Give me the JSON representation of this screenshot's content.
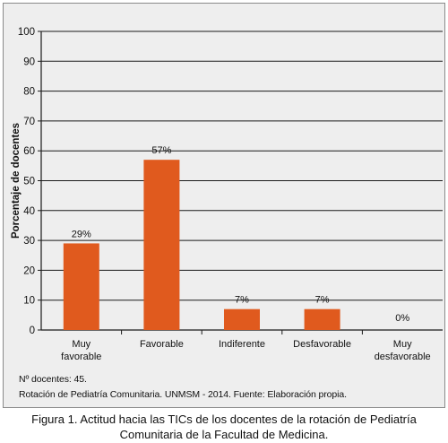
{
  "chart_data": {
    "type": "bar",
    "categories": [
      "Muy\nfavorable",
      "Favorable",
      "Indiferente",
      "Desfavorable",
      "Muy\ndesfavorable"
    ],
    "values": [
      29,
      57,
      7,
      7,
      0
    ],
    "data_labels": [
      "29%",
      "57%",
      "7%",
      "7%",
      "0%"
    ],
    "ylabel": "Porcentaje de docentes",
    "xlabel": "",
    "ylim": [
      0,
      100
    ],
    "yticks": [
      0,
      10,
      20,
      30,
      40,
      50,
      60,
      70,
      80,
      90,
      100
    ],
    "grid": true,
    "bar_color": "#e05a1e"
  },
  "notes": {
    "line1": "Nº docentes: 45.",
    "line2": "Rotación de Pediatría Comunitaria. UNMSM - 2014. Fuente: Elaboración propia."
  },
  "caption": {
    "line1": "Figura 1. Actitud hacia las TICs de los docentes de la rotación de Pediatría",
    "line2": "Comunitaria de la Facultad de Medicina."
  }
}
